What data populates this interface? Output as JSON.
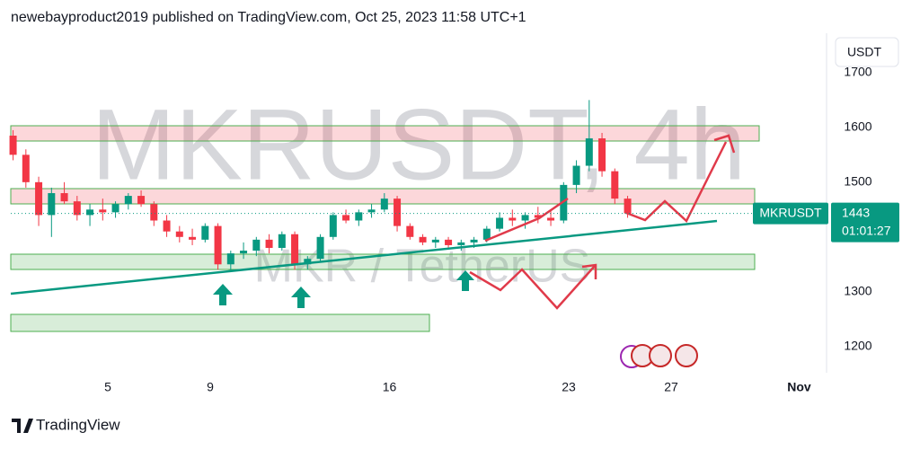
{
  "header": {
    "text": "newebayproduct2019 published on TradingView.com, Oct 25, 2023 11:58 UTC+1"
  },
  "currency": "USDT",
  "watermark": {
    "symbol": "MKRUSDT, 4h",
    "description": "MKR / TetherUS"
  },
  "price_label": {
    "symbol": "MKRUSDT",
    "countdown": "01:01:27"
  },
  "logo": "TradingView",
  "chart_data": {
    "type": "candlestick",
    "x": [
      1.3,
      1.8,
      2.3,
      2.8,
      3.3,
      3.8,
      4.3,
      4.8,
      5.3,
      5.8,
      6.3,
      6.8,
      7.3,
      7.8,
      8.3,
      8.8,
      9.3,
      9.8,
      10.3,
      10.8,
      11.3,
      11.8,
      12.3,
      12.8,
      13.3,
      13.8,
      14.3,
      14.8,
      15.3,
      15.8,
      16.3,
      16.8,
      17.3,
      17.8,
      18.3,
      18.8,
      19.3,
      19.8,
      20.3,
      20.8,
      21.3,
      21.8,
      22.3,
      22.8,
      23.3,
      23.8,
      24.3,
      24.8,
      25.3
    ],
    "open": [
      1585,
      1550,
      1500,
      1440,
      1480,
      1465,
      1440,
      1450,
      1445,
      1460,
      1475,
      1460,
      1430,
      1410,
      1400,
      1395,
      1420,
      1350,
      1370,
      1375,
      1395,
      1380,
      1405,
      1350,
      1360,
      1400,
      1440,
      1430,
      1445,
      1450,
      1470,
      1420,
      1400,
      1390,
      1395,
      1385,
      1390,
      1395,
      1415,
      1435,
      1430,
      1440,
      1435,
      1430,
      1495,
      1530,
      1580,
      1520,
      1470
    ],
    "high": [
      1595,
      1560,
      1510,
      1490,
      1500,
      1475,
      1460,
      1470,
      1465,
      1480,
      1485,
      1465,
      1440,
      1420,
      1415,
      1425,
      1425,
      1375,
      1390,
      1400,
      1405,
      1410,
      1410,
      1365,
      1405,
      1445,
      1450,
      1450,
      1460,
      1480,
      1475,
      1425,
      1405,
      1400,
      1400,
      1395,
      1400,
      1420,
      1445,
      1450,
      1445,
      1455,
      1450,
      1500,
      1540,
      1650,
      1590,
      1525,
      1475
    ],
    "low": [
      1540,
      1490,
      1420,
      1400,
      1460,
      1430,
      1420,
      1430,
      1435,
      1450,
      1455,
      1420,
      1400,
      1390,
      1385,
      1390,
      1340,
      1340,
      1360,
      1365,
      1370,
      1375,
      1340,
      1340,
      1355,
      1395,
      1425,
      1420,
      1435,
      1445,
      1410,
      1395,
      1385,
      1380,
      1380,
      1375,
      1380,
      1390,
      1410,
      1420,
      1415,
      1425,
      1420,
      1425,
      1480,
      1520,
      1510,
      1460,
      1435
    ],
    "close": [
      1550,
      1500,
      1440,
      1480,
      1465,
      1440,
      1450,
      1445,
      1460,
      1475,
      1460,
      1430,
      1410,
      1400,
      1395,
      1420,
      1350,
      1370,
      1375,
      1395,
      1380,
      1405,
      1350,
      1360,
      1400,
      1440,
      1430,
      1445,
      1450,
      1470,
      1420,
      1400,
      1390,
      1395,
      1385,
      1390,
      1395,
      1415,
      1435,
      1430,
      1440,
      1435,
      1430,
      1495,
      1530,
      1580,
      1520,
      1470,
      1443
    ],
    "up_color": "#089981",
    "down_color": "#f23645",
    "last_price": 1443,
    "xlim": [
      1.21,
      33.07
    ],
    "xticks": [
      5,
      9,
      16,
      23,
      27,
      {
        "value": 32,
        "label": "Nov"
      }
    ],
    "ylim": [
      1152,
      1772
    ],
    "yticks": [
      1200,
      1300,
      1500,
      1600,
      1700
    ]
  }
}
